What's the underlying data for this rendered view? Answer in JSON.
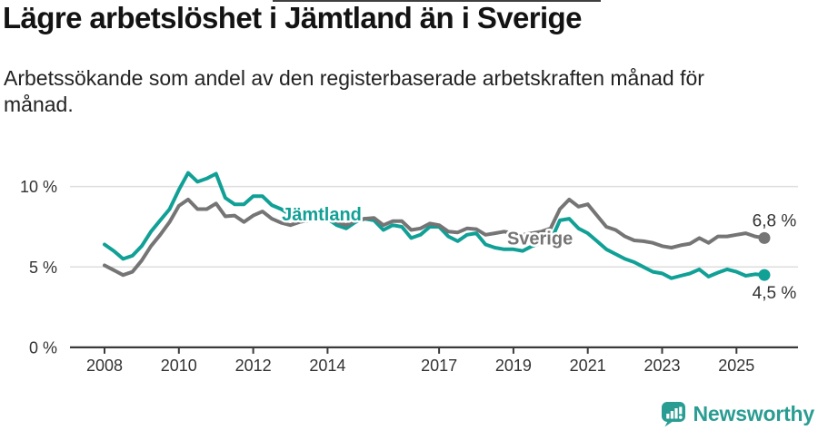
{
  "header": {
    "title": "Lägre arbetslöshet i Jämtland än i Sverige",
    "subtitle": "Arbetssökande som andel av den registerbaserade arbetskraften månad för månad."
  },
  "chart_data": {
    "type": "line",
    "unit": "%",
    "grid": "horizontal",
    "ylim": [
      0,
      12
    ],
    "xlim": [
      2007.1,
      2026.7
    ],
    "x_ticks": [
      2008,
      2010,
      2012,
      2014,
      2017,
      2019,
      2021,
      2023,
      2025
    ],
    "y_ticks": [
      {
        "value": 0,
        "label": "0 %"
      },
      {
        "value": 5,
        "label": "5 %"
      },
      {
        "value": 10,
        "label": "10 %"
      }
    ],
    "x": [
      2008,
      2008.25,
      2008.5,
      2008.75,
      2009,
      2009.25,
      2009.5,
      2009.75,
      2010,
      2010.25,
      2010.5,
      2010.75,
      2011,
      2011.25,
      2011.5,
      2011.75,
      2012,
      2012.25,
      2012.5,
      2012.75,
      2013,
      2013.25,
      2013.5,
      2013.75,
      2014,
      2014.25,
      2014.5,
      2014.75,
      2015,
      2015.25,
      2015.5,
      2015.75,
      2016,
      2016.25,
      2016.5,
      2016.75,
      2017,
      2017.25,
      2017.5,
      2017.75,
      2018,
      2018.25,
      2018.5,
      2018.75,
      2019,
      2019.25,
      2019.5,
      2019.75,
      2020,
      2020.25,
      2020.5,
      2020.75,
      2021,
      2021.25,
      2021.5,
      2021.75,
      2022,
      2022.25,
      2022.5,
      2022.75,
      2023,
      2023.25,
      2023.5,
      2023.75,
      2024,
      2024.25,
      2024.5,
      2024.75,
      2025,
      2025.25,
      2025.5,
      2025.75
    ],
    "series": [
      {
        "name": "Jämtland",
        "color": "#11a096",
        "end_label": "4,5 %",
        "end_value": 4.5,
        "name_label_pos": {
          "x": 2012.77,
          "y": 8.0
        },
        "values": [
          6.4,
          6.0,
          5.5,
          5.7,
          6.3,
          7.2,
          7.9,
          8.6,
          9.8,
          10.85,
          10.3,
          10.5,
          10.8,
          9.3,
          8.9,
          8.9,
          9.4,
          9.4,
          8.85,
          8.6,
          8.25,
          8.05,
          7.95,
          8.1,
          8.0,
          7.6,
          7.4,
          7.8,
          8.0,
          7.9,
          7.3,
          7.6,
          7.5,
          6.8,
          7.0,
          7.5,
          7.5,
          6.9,
          6.6,
          7.0,
          7.1,
          6.4,
          6.2,
          6.1,
          6.1,
          6.0,
          6.3,
          6.5,
          6.6,
          7.9,
          8.0,
          7.4,
          7.1,
          6.6,
          6.1,
          5.8,
          5.5,
          5.3,
          5.0,
          4.7,
          4.6,
          4.3,
          4.45,
          4.6,
          4.85,
          4.4,
          4.65,
          4.85,
          4.7,
          4.45,
          4.55,
          4.5
        ]
      },
      {
        "name": "Sverige",
        "color": "#757575",
        "end_label": "6,8 %",
        "end_value": 6.8,
        "name_label_pos": {
          "x": 2018.83,
          "y": 6.5
        },
        "values": [
          5.1,
          4.8,
          4.5,
          4.7,
          5.4,
          6.3,
          7.0,
          7.8,
          8.8,
          9.2,
          8.6,
          8.6,
          8.95,
          8.15,
          8.2,
          7.8,
          8.2,
          8.45,
          8.0,
          7.75,
          7.6,
          7.8,
          7.9,
          8.05,
          8.1,
          7.8,
          7.6,
          7.9,
          8.0,
          8.05,
          7.6,
          7.85,
          7.85,
          7.3,
          7.4,
          7.7,
          7.6,
          7.2,
          7.15,
          7.4,
          7.35,
          7.0,
          7.1,
          7.2,
          7.1,
          7.0,
          7.1,
          7.2,
          7.4,
          8.6,
          9.2,
          8.75,
          8.9,
          8.2,
          7.5,
          7.3,
          6.9,
          6.65,
          6.6,
          6.5,
          6.3,
          6.2,
          6.35,
          6.45,
          6.8,
          6.5,
          6.9,
          6.9,
          7.0,
          7.1,
          6.9,
          6.8
        ]
      }
    ],
    "colors": {
      "grid": "#dedede",
      "axis": "#3a3a3a",
      "tick_label": "#333333",
      "annotation": "#333333"
    }
  },
  "footer": {
    "brand": "Newsworthy",
    "brand_color": "#2a9d93"
  }
}
